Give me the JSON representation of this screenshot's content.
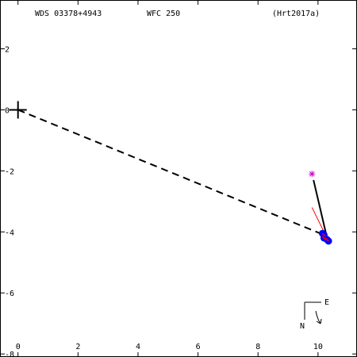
{
  "header": {
    "wds_id": "WDS 03378+4943",
    "discoverer": "WFC 250",
    "reference": "(Hrt2017a)"
  },
  "compass": {
    "east_label": "E",
    "north_label": "N"
  },
  "chart_data": {
    "type": "scatter",
    "xlim": [
      -0.6,
      11.3
    ],
    "ylim": [
      -8.1,
      3.6
    ],
    "x_ticks": [
      0,
      2,
      4,
      6,
      8,
      10
    ],
    "y_ticks": [
      2,
      0,
      -2,
      -4,
      -6,
      -8
    ],
    "x_tick_labels": [
      "0",
      "2",
      "4",
      "6",
      "8",
      "10"
    ],
    "y_tick_labels": [
      "2",
      "0",
      "-2",
      "-4",
      "-6",
      "-8"
    ],
    "primary": {
      "x": 0,
      "y": 0,
      "marker": "plus"
    },
    "dashed_line": {
      "from": [
        0,
        0
      ],
      "to": [
        10.2,
        -4.1
      ]
    },
    "outlier": {
      "x": 9.8,
      "y": -2.1,
      "marker": "asterisk",
      "color": "#cc00cc"
    },
    "solid_line": {
      "from": [
        9.85,
        -2.3
      ],
      "to": [
        10.35,
        -4.4
      ],
      "color": "#000000"
    },
    "red_line": {
      "from": [
        9.8,
        -3.2
      ],
      "to": [
        10.3,
        -4.2
      ],
      "color": "#ff0000"
    },
    "observations": [
      {
        "x": 10.2,
        "y": -4.1,
        "color": "#0000ff"
      },
      {
        "x": 10.2,
        "y": -4.2,
        "color": "#0000ff"
      },
      {
        "x": 10.3,
        "y": -4.25,
        "color": "#0000ff"
      },
      {
        "x": 10.35,
        "y": -4.3,
        "color": "#0000ff"
      },
      {
        "x": 10.15,
        "y": -4.05,
        "color": "#0000ff"
      }
    ],
    "markers_color": "#ff0000"
  }
}
